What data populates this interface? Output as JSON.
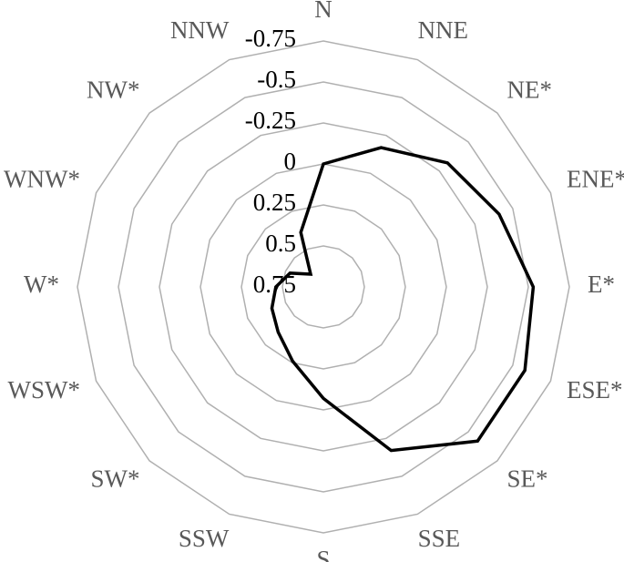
{
  "chart_data": {
    "type": "radar",
    "categories": [
      "N",
      "NNE",
      "NE*",
      "ENE*",
      "E*",
      "ESE*",
      "SE*",
      "SSE",
      "S",
      "SSW",
      "SW*",
      "WSW*",
      "W*",
      "WNW*",
      "NW*",
      "NNW"
    ],
    "values": [
      0,
      -0.17,
      -0.32,
      -0.41,
      -0.53,
      -0.58,
      -0.58,
      -0.33,
      0.07,
      0.26,
      0.36,
      0.41,
      0.46,
      0.53,
      0.64,
      0.39
    ],
    "color": "#000000",
    "ylim": [
      0.75,
      -0.75
    ],
    "yticks": [
      -0.75,
      -0.5,
      -0.25,
      0,
      0.25,
      0.5,
      0.75
    ],
    "grid": true
  }
}
